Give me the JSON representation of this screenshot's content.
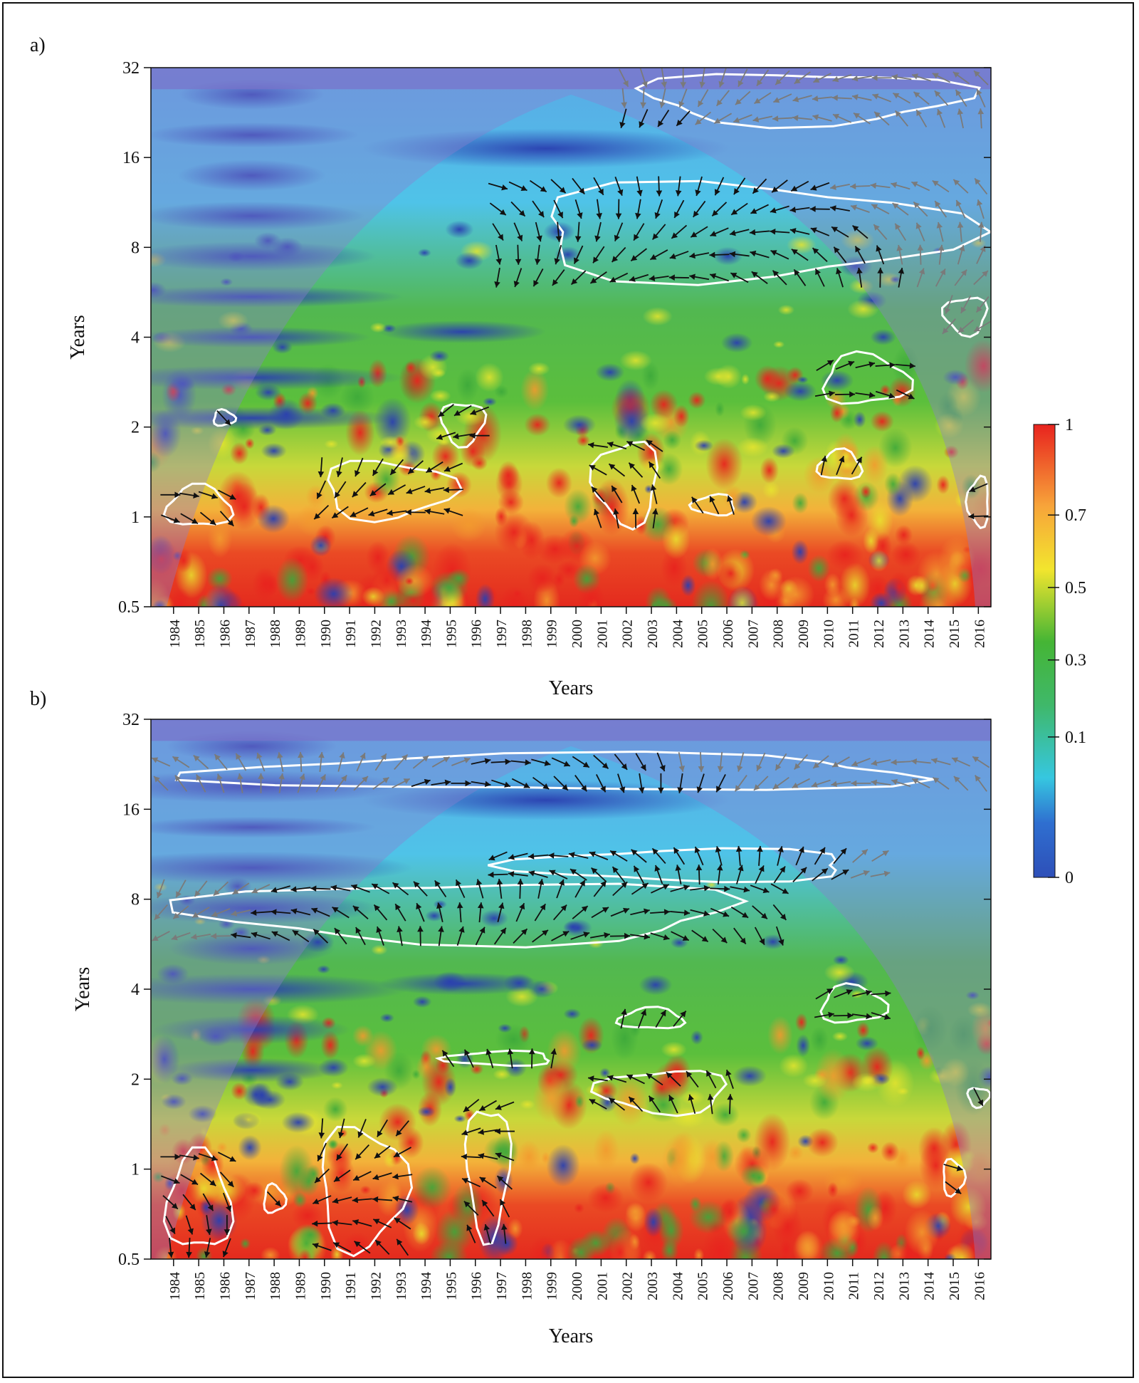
{
  "chart_data": [
    {
      "type": "heatmap",
      "panel_label": "a)",
      "xlabel": "Years",
      "ylabel": "Years",
      "x_ticks": [
        "1984",
        "1985",
        "1986",
        "1987",
        "1988",
        "1989",
        "1990",
        "1991",
        "1992",
        "1993",
        "1994",
        "1995",
        "1996",
        "1997",
        "1998",
        "1999",
        "2000",
        "2001",
        "2002",
        "2003",
        "2004",
        "2005",
        "2006",
        "2007",
        "2008",
        "2009",
        "2010",
        "2011",
        "2012",
        "2013",
        "2014",
        "2015",
        "2016"
      ],
      "y_ticks": [
        "0.5",
        "1",
        "2",
        "4",
        "8",
        "16",
        "32"
      ],
      "y_scale": "log2",
      "ylim": [
        0.5,
        32
      ],
      "xlim": [
        1983.6,
        2017
      ],
      "significant_regions": [
        {
          "x": [
            1984,
            1987
          ],
          "y": [
            0.9,
            1.3
          ]
        },
        {
          "x": [
            1986,
            1987
          ],
          "y": [
            2.0,
            2.3
          ]
        },
        {
          "x": [
            1990,
            1996
          ],
          "y": [
            0.95,
            1.6
          ]
        },
        {
          "x": [
            1995,
            1997
          ],
          "y": [
            1.7,
            2.5
          ]
        },
        {
          "x": [
            2001,
            2004
          ],
          "y": [
            0.9,
            1.9
          ]
        },
        {
          "x": [
            2005,
            2007
          ],
          "y": [
            1.0,
            1.2
          ]
        },
        {
          "x": [
            2010,
            2012
          ],
          "y": [
            1.3,
            1.7
          ]
        },
        {
          "x": [
            2010,
            2014
          ],
          "y": [
            2.3,
            3.6
          ]
        },
        {
          "x": [
            1997,
            2017
          ],
          "y": [
            5.8,
            14
          ]
        },
        {
          "x": [
            2002,
            2017
          ],
          "y": [
            20,
            32
          ]
        },
        {
          "x": [
            2015,
            2017
          ],
          "y": [
            4,
            5.6
          ]
        },
        {
          "x": [
            2016,
            2017
          ],
          "y": [
            0.9,
            1.4
          ]
        }
      ]
    },
    {
      "type": "heatmap",
      "panel_label": "b)",
      "xlabel": "Years",
      "ylabel": "Years",
      "x_ticks": [
        "1984",
        "1985",
        "1986",
        "1987",
        "1988",
        "1989",
        "1990",
        "1991",
        "1992",
        "1993",
        "1994",
        "1995",
        "1996",
        "1997",
        "1998",
        "1999",
        "2000",
        "2001",
        "2002",
        "2003",
        "2004",
        "2005",
        "2006",
        "2007",
        "2008",
        "2009",
        "2010",
        "2011",
        "2012",
        "2013",
        "2014",
        "2015",
        "2016"
      ],
      "y_ticks": [
        "0.5",
        "1",
        "2",
        "4",
        "8",
        "16",
        "32"
      ],
      "y_scale": "log2",
      "ylim": [
        0.5,
        32
      ],
      "xlim": [
        1983.6,
        2017
      ],
      "significant_regions": [
        {
          "x": [
            1984,
            1987
          ],
          "y": [
            0.5,
            1.2
          ]
        },
        {
          "x": [
            1988,
            1989
          ],
          "y": [
            0.7,
            0.9
          ]
        },
        {
          "x": [
            1990,
            1994
          ],
          "y": [
            0.5,
            1.5
          ]
        },
        {
          "x": [
            1996,
            1998
          ],
          "y": [
            0.55,
            1.8
          ]
        },
        {
          "x": [
            2001,
            2007
          ],
          "y": [
            1.5,
            2.2
          ]
        },
        {
          "x": [
            1995,
            2000
          ],
          "y": [
            2.2,
            2.5
          ]
        },
        {
          "x": [
            2002,
            2005
          ],
          "y": [
            2.9,
            3.5
          ]
        },
        {
          "x": [
            2010,
            2013
          ],
          "y": [
            3.0,
            4.2
          ]
        },
        {
          "x": [
            2015,
            2016
          ],
          "y": [
            0.8,
            1.1
          ]
        },
        {
          "x": [
            2016,
            2017
          ],
          "y": [
            1.6,
            1.9
          ]
        },
        {
          "x": [
            1983.6,
            2009
          ],
          "y": [
            5.5,
            9.5
          ]
        },
        {
          "x": [
            1997,
            2013
          ],
          "y": [
            9,
            12
          ]
        },
        {
          "x": [
            1983.6,
            2017
          ],
          "y": [
            18,
            25
          ]
        }
      ]
    }
  ],
  "colorbar": {
    "ticks": [
      "1",
      "0.7",
      "0.5",
      "0.3",
      "0.1",
      "0"
    ],
    "colors": [
      "#e8231e",
      "#f7a43a",
      "#f2e52e",
      "#45b535",
      "#36c7e0",
      "#2e4fb8"
    ]
  }
}
